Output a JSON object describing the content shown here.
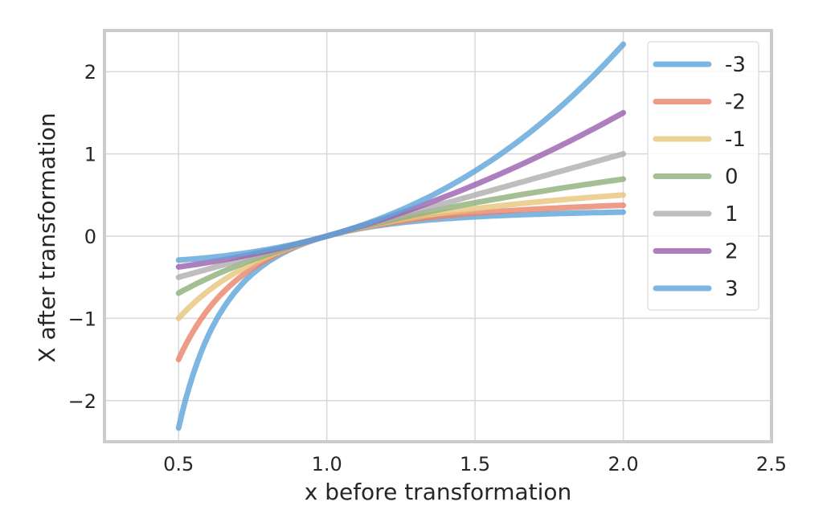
{
  "chart_data": {
    "type": "line",
    "title": "",
    "xlabel": "x before transformation",
    "ylabel": "X after transformation",
    "xlim": [
      0.25,
      2.5
    ],
    "ylim": [
      -2.5,
      2.5
    ],
    "x_ticks": [
      0.5,
      1.0,
      1.5,
      2.0,
      2.5
    ],
    "x_tick_labels": [
      "0.5",
      "1.0",
      "1.5",
      "2.0",
      "2.5"
    ],
    "y_ticks": [
      -2,
      -1,
      0,
      1,
      2
    ],
    "y_tick_labels": [
      "−2",
      "−1",
      "0",
      "1",
      "2"
    ],
    "x_range": [
      0.5,
      2.0
    ],
    "grid": true,
    "legend_position": "top-right",
    "series": [
      {
        "name": "-3",
        "lambda": -3,
        "color": "#5DA5DA"
      },
      {
        "name": "-2",
        "lambda": -2,
        "color": "#E8836A"
      },
      {
        "name": "-1",
        "lambda": -1,
        "color": "#E8C47A"
      },
      {
        "name": "0",
        "lambda": 0,
        "color": "#8FAF7A"
      },
      {
        "name": "1",
        "lambda": 1,
        "color": "#AEAEAE"
      },
      {
        "name": "2",
        "lambda": 2,
        "color": "#9A5FAE"
      },
      {
        "name": "3",
        "lambda": 3,
        "color": "#5DA5DA"
      }
    ]
  }
}
